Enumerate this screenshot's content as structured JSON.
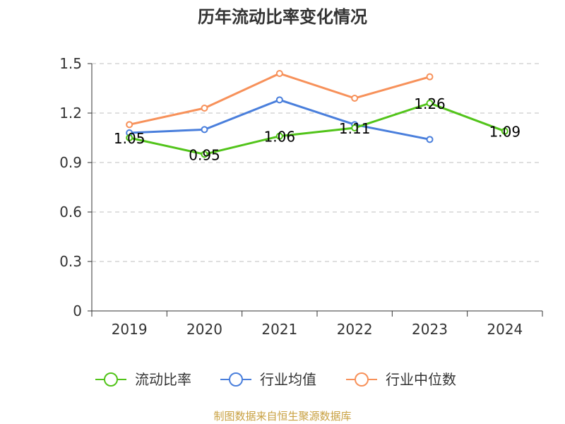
{
  "chart_data": {
    "type": "line",
    "title": "历年流动比率变化情况",
    "xlabel": "",
    "ylabel": "",
    "categories": [
      "2019",
      "2020",
      "2021",
      "2022",
      "2023",
      "2024"
    ],
    "ylim": [
      0,
      1.5
    ],
    "yticks": [
      "0",
      "0.3",
      "0.6",
      "0.9",
      "1.2",
      "1.5"
    ],
    "grid": true,
    "legend_position": "bottom",
    "series": [
      {
        "name": "流动比率",
        "color": "#52c41a",
        "values": [
          1.05,
          0.95,
          1.06,
          1.11,
          1.26,
          1.09
        ],
        "labels": [
          "1.05",
          "0.95",
          "1.06",
          "1.11",
          "1.26",
          "1.09"
        ]
      },
      {
        "name": "行业均值",
        "color": "#4a7fdc",
        "values": [
          1.08,
          1.1,
          1.28,
          1.13,
          1.04,
          null
        ]
      },
      {
        "name": "行业中位数",
        "color": "#f7915a",
        "values": [
          1.13,
          1.23,
          1.44,
          1.29,
          1.42,
          null
        ]
      }
    ]
  },
  "source": "制图数据来自恒生聚源数据库"
}
